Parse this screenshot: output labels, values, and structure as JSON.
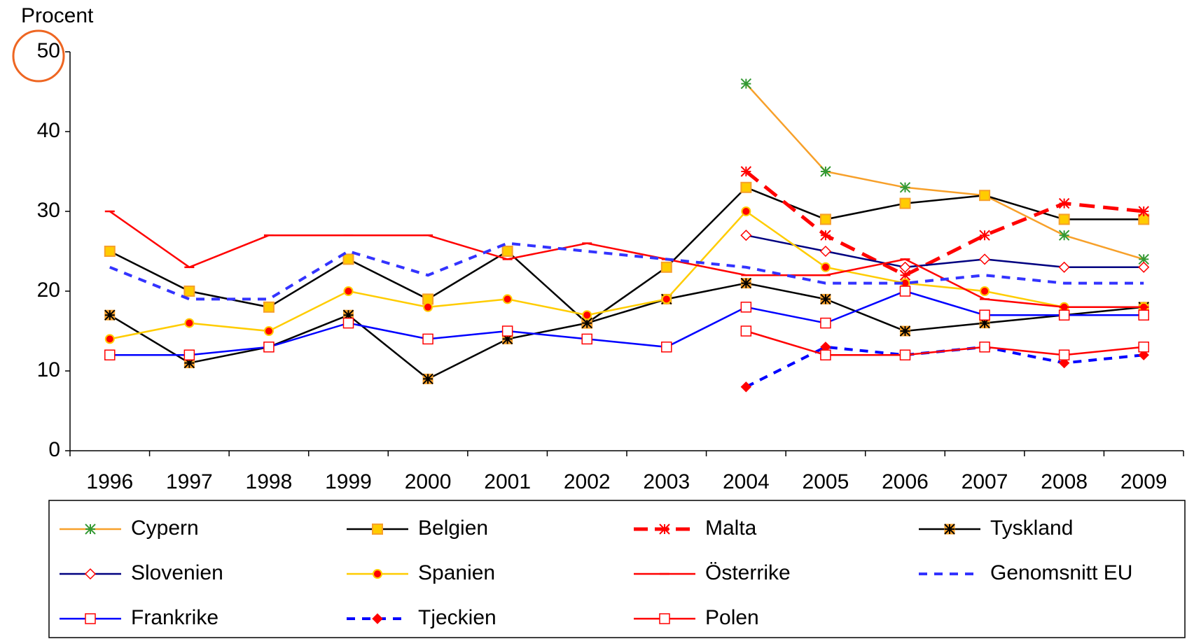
{
  "chart_data": {
    "type": "line",
    "y_label": "Procent",
    "categories": [
      "1996",
      "1997",
      "1998",
      "1999",
      "2000",
      "2001",
      "2002",
      "2003",
      "2004",
      "2005",
      "2006",
      "2007",
      "2008",
      "2009"
    ],
    "ylim": [
      0,
      50
    ],
    "yticks": [
      0,
      10,
      20,
      30,
      40,
      50
    ],
    "series": [
      {
        "name": "Cypern",
        "color": "#f7a02a",
        "marker": "star",
        "marker_color": "#339933",
        "dash": false,
        "values": [
          null,
          null,
          null,
          null,
          null,
          null,
          null,
          null,
          46,
          35,
          33,
          32,
          27,
          24
        ]
      },
      {
        "name": "Belgien",
        "color": "#000000",
        "marker": "square",
        "marker_color": "#ffcc00",
        "dash": false,
        "values": [
          25,
          20,
          18,
          24,
          19,
          25,
          16,
          23,
          33,
          29,
          31,
          32,
          29,
          29
        ]
      },
      {
        "name": "Malta",
        "color": "#ff0000",
        "marker": "star",
        "marker_color": "#ff0000",
        "dash": true,
        "values": [
          null,
          null,
          null,
          null,
          null,
          null,
          null,
          null,
          35,
          27,
          22,
          27,
          31,
          30
        ]
      },
      {
        "name": "Tyskland",
        "color": "#000000",
        "marker": "starsquare",
        "marker_color": "#f7a02a",
        "dash": false,
        "values": [
          17,
          11,
          13,
          17,
          9,
          14,
          16,
          19,
          21,
          19,
          15,
          16,
          17,
          18
        ]
      },
      {
        "name": "Slovenien",
        "color": "#000080",
        "marker": "diamond-open",
        "marker_color": "#ff0000",
        "dash": false,
        "values": [
          null,
          null,
          null,
          null,
          null,
          null,
          null,
          null,
          27,
          25,
          23,
          24,
          23,
          23
        ]
      },
      {
        "name": "Spanien",
        "color": "#ffcc00",
        "marker": "circle",
        "marker_color": "#ff0000",
        "dash": false,
        "values": [
          14,
          16,
          15,
          20,
          18,
          19,
          17,
          19,
          30,
          23,
          21,
          20,
          18,
          18
        ]
      },
      {
        "name": "Österrike",
        "color": "#ff0000",
        "marker": "dash",
        "marker_color": "#ff0000",
        "dash": false,
        "values": [
          30,
          23,
          27,
          27,
          27,
          24,
          26,
          24,
          22,
          22,
          24,
          19,
          18,
          18
        ]
      },
      {
        "name": "Genomsnitt EU",
        "color": "#3333ff",
        "marker": "none",
        "marker_color": "#3333ff",
        "dash": true,
        "values": [
          23,
          19,
          19,
          25,
          22,
          26,
          25,
          24,
          23,
          21,
          21,
          22,
          21,
          21
        ]
      },
      {
        "name": "Frankrike",
        "color": "#0000ff",
        "marker": "square-open",
        "marker_color": "#ff0000",
        "dash": false,
        "values": [
          12,
          12,
          13,
          16,
          14,
          15,
          14,
          13,
          18,
          16,
          20,
          17,
          17,
          17
        ]
      },
      {
        "name": "Tjeckien",
        "color": "#0000ff",
        "marker": "diamond",
        "marker_color": "#ff0000",
        "dash": true,
        "values": [
          null,
          null,
          null,
          null,
          null,
          null,
          null,
          null,
          8,
          13,
          12,
          13,
          11,
          12
        ]
      },
      {
        "name": "Polen",
        "color": "#ff0000",
        "marker": "square-open",
        "marker_color": "#ff0000",
        "dash": false,
        "values": [
          null,
          null,
          null,
          null,
          null,
          null,
          null,
          null,
          15,
          12,
          12,
          13,
          12,
          13
        ]
      }
    ]
  }
}
